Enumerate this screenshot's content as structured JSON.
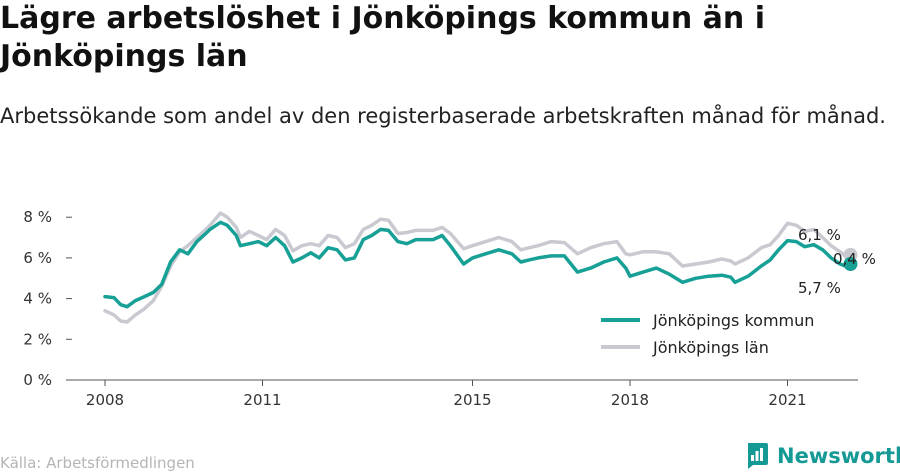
{
  "title": "Lägre arbetslöshet i Jönköpings kommun än i Jönköpings län",
  "subtitle": "Arbetssökande som andel av den registerbaserade arbetskraften månad för månad.",
  "source": "Källa: Arbetsförmedlingen",
  "brand": "Newsworthy",
  "colors": {
    "kommun": "#17a096",
    "lan": "#c9c9d1",
    "brand": "#149994"
  },
  "chart_data": {
    "type": "line",
    "ylim": [
      0,
      8
    ],
    "yticks": [
      0,
      2,
      4,
      6,
      8
    ],
    "ytick_labels": [
      "0 %",
      "2 %",
      "4 %",
      "6 %",
      "8 %"
    ],
    "xlim": [
      2008.0,
      2022.25
    ],
    "xticks": [
      2008,
      2011,
      2015,
      2018,
      2021
    ],
    "xtick_labels": [
      "2008",
      "2011",
      "2015",
      "2018",
      "2021"
    ],
    "grid": false,
    "legend_position": "bottom-right",
    "series": [
      {
        "name": "Jönköpings kommun",
        "color": "#17a096",
        "points": [
          [
            2008.0,
            4.1
          ],
          [
            2008.17,
            4.05
          ],
          [
            2008.3,
            3.7
          ],
          [
            2008.42,
            3.6
          ],
          [
            2008.58,
            3.9
          ],
          [
            2008.75,
            4.1
          ],
          [
            2008.92,
            4.3
          ],
          [
            2009.08,
            4.7
          ],
          [
            2009.25,
            5.8
          ],
          [
            2009.42,
            6.4
          ],
          [
            2009.58,
            6.2
          ],
          [
            2009.75,
            6.8
          ],
          [
            2009.92,
            7.2
          ],
          [
            2010.0,
            7.4
          ],
          [
            2010.2,
            7.75
          ],
          [
            2010.33,
            7.6
          ],
          [
            2010.5,
            7.1
          ],
          [
            2010.58,
            6.6
          ],
          [
            2010.75,
            6.7
          ],
          [
            2010.92,
            6.8
          ],
          [
            2011.08,
            6.6
          ],
          [
            2011.25,
            7.0
          ],
          [
            2011.42,
            6.6
          ],
          [
            2011.58,
            5.8
          ],
          [
            2011.75,
            6.0
          ],
          [
            2011.92,
            6.25
          ],
          [
            2012.08,
            6.0
          ],
          [
            2012.25,
            6.5
          ],
          [
            2012.42,
            6.4
          ],
          [
            2012.58,
            5.9
          ],
          [
            2012.75,
            6.0
          ],
          [
            2012.92,
            6.9
          ],
          [
            2013.08,
            7.1
          ],
          [
            2013.25,
            7.4
          ],
          [
            2013.4,
            7.35
          ],
          [
            2013.58,
            6.8
          ],
          [
            2013.75,
            6.7
          ],
          [
            2013.92,
            6.9
          ],
          [
            2014.25,
            6.9
          ],
          [
            2014.42,
            7.1
          ],
          [
            2014.58,
            6.6
          ],
          [
            2014.83,
            5.7
          ],
          [
            2015.0,
            6.0
          ],
          [
            2015.25,
            6.2
          ],
          [
            2015.5,
            6.4
          ],
          [
            2015.75,
            6.2
          ],
          [
            2015.92,
            5.8
          ],
          [
            2016.08,
            5.9
          ],
          [
            2016.25,
            6.0
          ],
          [
            2016.5,
            6.1
          ],
          [
            2016.75,
            6.1
          ],
          [
            2017.0,
            5.3
          ],
          [
            2017.25,
            5.5
          ],
          [
            2017.5,
            5.8
          ],
          [
            2017.75,
            6.0
          ],
          [
            2017.92,
            5.5
          ],
          [
            2018.0,
            5.1
          ],
          [
            2018.25,
            5.3
          ],
          [
            2018.5,
            5.5
          ],
          [
            2018.75,
            5.2
          ],
          [
            2019.0,
            4.8
          ],
          [
            2019.25,
            5.0
          ],
          [
            2019.5,
            5.1
          ],
          [
            2019.75,
            5.15
          ],
          [
            2019.92,
            5.05
          ],
          [
            2020.0,
            4.8
          ],
          [
            2020.25,
            5.1
          ],
          [
            2020.5,
            5.6
          ],
          [
            2020.67,
            5.9
          ],
          [
            2020.83,
            6.4
          ],
          [
            2021.0,
            6.85
          ],
          [
            2021.17,
            6.8
          ],
          [
            2021.33,
            6.55
          ],
          [
            2021.5,
            6.65
          ],
          [
            2021.67,
            6.4
          ],
          [
            2021.83,
            6.0
          ],
          [
            2022.0,
            5.7
          ],
          [
            2022.1,
            5.6
          ],
          [
            2022.2,
            5.7
          ]
        ]
      },
      {
        "name": "Jönköpings län",
        "color": "#c9c9d1",
        "points": [
          [
            2008.0,
            3.4
          ],
          [
            2008.17,
            3.2
          ],
          [
            2008.3,
            2.9
          ],
          [
            2008.42,
            2.85
          ],
          [
            2008.58,
            3.2
          ],
          [
            2008.75,
            3.5
          ],
          [
            2008.92,
            3.9
          ],
          [
            2009.08,
            4.6
          ],
          [
            2009.25,
            5.6
          ],
          [
            2009.42,
            6.3
          ],
          [
            2009.58,
            6.6
          ],
          [
            2009.75,
            7.0
          ],
          [
            2009.92,
            7.4
          ],
          [
            2010.0,
            7.6
          ],
          [
            2010.2,
            8.2
          ],
          [
            2010.33,
            8.0
          ],
          [
            2010.5,
            7.5
          ],
          [
            2010.58,
            7.0
          ],
          [
            2010.75,
            7.3
          ],
          [
            2010.92,
            7.1
          ],
          [
            2011.08,
            6.9
          ],
          [
            2011.25,
            7.4
          ],
          [
            2011.42,
            7.1
          ],
          [
            2011.58,
            6.35
          ],
          [
            2011.75,
            6.6
          ],
          [
            2011.92,
            6.7
          ],
          [
            2012.08,
            6.6
          ],
          [
            2012.25,
            7.1
          ],
          [
            2012.42,
            7.0
          ],
          [
            2012.58,
            6.5
          ],
          [
            2012.75,
            6.7
          ],
          [
            2012.92,
            7.4
          ],
          [
            2013.08,
            7.6
          ],
          [
            2013.25,
            7.9
          ],
          [
            2013.4,
            7.85
          ],
          [
            2013.58,
            7.2
          ],
          [
            2013.75,
            7.25
          ],
          [
            2013.92,
            7.35
          ],
          [
            2014.25,
            7.35
          ],
          [
            2014.42,
            7.5
          ],
          [
            2014.58,
            7.2
          ],
          [
            2014.83,
            6.45
          ],
          [
            2015.0,
            6.6
          ],
          [
            2015.25,
            6.8
          ],
          [
            2015.5,
            7.0
          ],
          [
            2015.75,
            6.8
          ],
          [
            2015.92,
            6.4
          ],
          [
            2016.08,
            6.5
          ],
          [
            2016.25,
            6.6
          ],
          [
            2016.5,
            6.8
          ],
          [
            2016.75,
            6.75
          ],
          [
            2017.0,
            6.2
          ],
          [
            2017.25,
            6.5
          ],
          [
            2017.5,
            6.7
          ],
          [
            2017.75,
            6.8
          ],
          [
            2017.92,
            6.2
          ],
          [
            2018.0,
            6.15
          ],
          [
            2018.25,
            6.3
          ],
          [
            2018.5,
            6.3
          ],
          [
            2018.75,
            6.2
          ],
          [
            2019.0,
            5.6
          ],
          [
            2019.25,
            5.7
          ],
          [
            2019.5,
            5.8
          ],
          [
            2019.75,
            5.95
          ],
          [
            2019.92,
            5.85
          ],
          [
            2020.0,
            5.7
          ],
          [
            2020.25,
            6.0
          ],
          [
            2020.5,
            6.5
          ],
          [
            2020.67,
            6.65
          ],
          [
            2020.83,
            7.1
          ],
          [
            2021.0,
            7.7
          ],
          [
            2021.17,
            7.6
          ],
          [
            2021.33,
            7.3
          ],
          [
            2021.5,
            7.4
          ],
          [
            2021.67,
            7.0
          ],
          [
            2021.83,
            6.6
          ],
          [
            2022.0,
            6.3
          ],
          [
            2022.1,
            6.1
          ],
          [
            2022.2,
            6.15
          ]
        ]
      }
    ],
    "end_labels": {
      "lan": "6,1 %",
      "kommun": "5,7 %",
      "difference": "0,4 %"
    }
  }
}
